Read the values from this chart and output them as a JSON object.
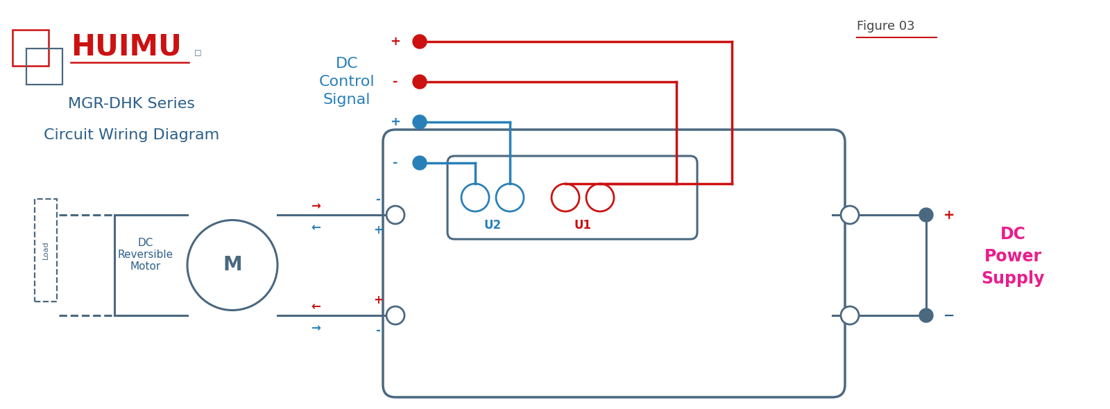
{
  "bg_color": "#ffffff",
  "red_color": "#cc1111",
  "blue_dark": "#2c5f8a",
  "blue_mid": "#2980b9",
  "pink_color": "#e91e8c",
  "gray_color": "#4a6880",
  "title_line1": "MGR-DHK Series",
  "title_line2": "Circuit Wiring Diagram",
  "figure_label": "Figure 03",
  "dc_control_label": "DC\nControl\nSignal",
  "dc_power_label": "DC\nPower\nSupply",
  "motor_label": "M",
  "motor_text": "DC\nReversible\nMotor",
  "load_label": "Load",
  "u2_label": "U2",
  "u1_label": "U1"
}
